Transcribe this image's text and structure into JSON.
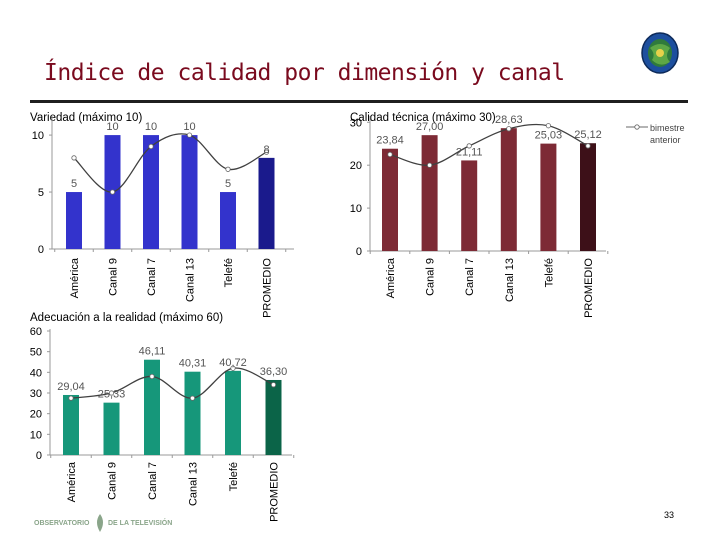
{
  "slide": {
    "title": "Índice de calidad por dimensión y canal",
    "page_number": "33",
    "footer_brand_left": "OBSERVATORIO",
    "footer_brand_right": "DE LA TELEVISIÓN"
  },
  "colors": {
    "title": "#7a0a1e",
    "variedad_bar": "#3333cc",
    "variedad_promedio": "#1a1a8c",
    "calidad_bar": "#7d2a35",
    "calidad_promedio": "#3d1018",
    "adecuacion_bar": "#16977a",
    "adecuacion_promedio": "#0b6448",
    "line": "#404040"
  },
  "chart_data": [
    {
      "type": "bar",
      "title": "Variedad (máximo 10)",
      "categories": [
        "América",
        "Canal 9",
        "Canal 7",
        "Canal 13",
        "Telefé",
        "PROMEDIO"
      ],
      "series": [
        {
          "values": [
            5,
            10,
            10,
            10,
            5,
            8
          ]
        },
        {
          "name": "bimestre anterior",
          "type": "line",
          "values": [
            8,
            5,
            9,
            10,
            7,
            8.5
          ]
        }
      ],
      "data_labels": [
        "5",
        "10",
        "10",
        "10",
        "5",
        "8"
      ],
      "yticks": [
        "0",
        "5",
        "10"
      ],
      "ylim": [
        0,
        11.5
      ]
    },
    {
      "type": "bar",
      "title": "Calidad técnica (máximo 30)",
      "categories": [
        "América",
        "Canal 9",
        "Canal 7",
        "Canal 13",
        "Telefé",
        "PROMEDIO"
      ],
      "series": [
        {
          "values": [
            23.84,
            27.0,
            21.11,
            28.63,
            25.03,
            25.12
          ]
        },
        {
          "name": "bimestre anterior",
          "type": "line",
          "values": [
            22.5,
            20.0,
            24.5,
            28.5,
            29.2,
            24.5
          ]
        }
      ],
      "data_labels": [
        "23,84",
        "27,00",
        "21,11",
        "28,63",
        "25,03",
        "25,12"
      ],
      "yticks": [
        "0",
        "10",
        "20",
        "30"
      ],
      "ylim": [
        0,
        31
      ],
      "legend": {
        "label": "bimestre anterior",
        "position": "right"
      }
    },
    {
      "type": "bar",
      "title": "Adecuación a la realidad (máximo  60)",
      "categories": [
        "América",
        "Canal 9",
        "Canal 7",
        "Canal 13",
        "Telefé",
        "PROMEDIO"
      ],
      "series": [
        {
          "values": [
            29.04,
            25.33,
            46.11,
            40.31,
            40.72,
            36.3
          ]
        },
        {
          "name": "bimestre anterior",
          "type": "line",
          "values": [
            27.5,
            30.0,
            38.0,
            27.5,
            42.0,
            34.0
          ]
        }
      ],
      "data_labels": [
        "29,04",
        "25,33",
        "46,11",
        "40,31",
        "40,72",
        "36,30"
      ],
      "yticks": [
        "0",
        "10",
        "20",
        "30",
        "40",
        "50",
        "60"
      ],
      "ylim": [
        0,
        60
      ]
    }
  ]
}
